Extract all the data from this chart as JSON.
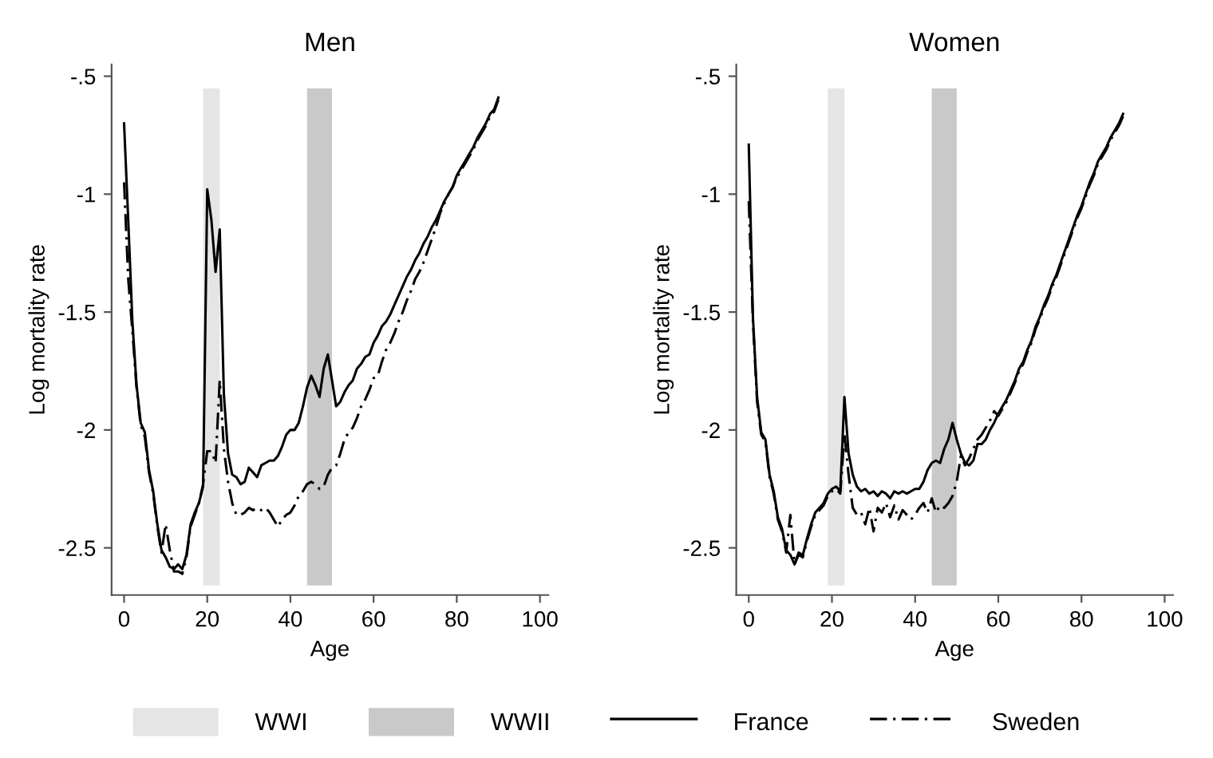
{
  "chart_data": [
    {
      "type": "line",
      "title": "Men",
      "xlabel": "Age",
      "ylabel": "Log mortality rate",
      "x": [
        0,
        1,
        2,
        3,
        4,
        5,
        6,
        7,
        8,
        9,
        10,
        11,
        12,
        13,
        14,
        15,
        16,
        17,
        18,
        19,
        20,
        21,
        22,
        23,
        24,
        25,
        26,
        27,
        28,
        29,
        30,
        31,
        32,
        33,
        34,
        35,
        36,
        37,
        38,
        39,
        40,
        41,
        42,
        43,
        44,
        45,
        46,
        47,
        48,
        49,
        50,
        51,
        52,
        53,
        54,
        55,
        56,
        57,
        58,
        59,
        60,
        61,
        62,
        63,
        64,
        65,
        66,
        67,
        68,
        69,
        70,
        71,
        72,
        73,
        74,
        75,
        76,
        77,
        78,
        79,
        80,
        81,
        82,
        83,
        84,
        85,
        86,
        87,
        88,
        89,
        90
      ],
      "series": [
        {
          "name": "France",
          "color": "#000000",
          "line_style": "solid",
          "values": [
            -0.7,
            -1.11,
            -1.54,
            -1.81,
            -1.97,
            -2.01,
            -2.17,
            -2.26,
            -2.4,
            -2.51,
            -2.54,
            -2.58,
            -2.59,
            -2.57,
            -2.59,
            -2.53,
            -2.4,
            -2.35,
            -2.31,
            -2.24,
            -0.98,
            -1.11,
            -1.33,
            -1.15,
            -1.85,
            -2.1,
            -2.19,
            -2.2,
            -2.23,
            -2.22,
            -2.16,
            -2.18,
            -2.2,
            -2.15,
            -2.14,
            -2.13,
            -2.13,
            -2.11,
            -2.07,
            -2.02,
            -2.0,
            -2.0,
            -1.97,
            -1.9,
            -1.82,
            -1.77,
            -1.81,
            -1.86,
            -1.74,
            -1.68,
            -1.79,
            -1.9,
            -1.88,
            -1.84,
            -1.81,
            -1.79,
            -1.74,
            -1.72,
            -1.69,
            -1.68,
            -1.63,
            -1.6,
            -1.56,
            -1.54,
            -1.51,
            -1.47,
            -1.43,
            -1.39,
            -1.35,
            -1.32,
            -1.28,
            -1.25,
            -1.21,
            -1.18,
            -1.14,
            -1.11,
            -1.07,
            -1.03,
            -1.0,
            -0.97,
            -0.92,
            -0.89,
            -0.86,
            -0.83,
            -0.8,
            -0.76,
            -0.73,
            -0.7,
            -0.66,
            -0.64,
            -0.59
          ]
        },
        {
          "name": "Sweden",
          "color": "#000000",
          "line_style": "dashdot",
          "values": [
            -0.95,
            -1.36,
            -1.58,
            -1.82,
            -1.98,
            -2.03,
            -2.18,
            -2.27,
            -2.41,
            -2.52,
            -2.4,
            -2.51,
            -2.6,
            -2.6,
            -2.61,
            -2.54,
            -2.41,
            -2.36,
            -2.31,
            -2.23,
            -2.09,
            -2.09,
            -2.14,
            -1.79,
            -2.08,
            -2.22,
            -2.31,
            -2.36,
            -2.36,
            -2.35,
            -2.33,
            -2.34,
            -2.33,
            -2.34,
            -2.33,
            -2.35,
            -2.38,
            -2.41,
            -2.38,
            -2.36,
            -2.35,
            -2.32,
            -2.28,
            -2.26,
            -2.23,
            -2.22,
            -2.23,
            -2.25,
            -2.24,
            -2.19,
            -2.16,
            -2.15,
            -2.1,
            -2.04,
            -2.01,
            -1.99,
            -1.95,
            -1.9,
            -1.87,
            -1.83,
            -1.78,
            -1.77,
            -1.71,
            -1.66,
            -1.63,
            -1.59,
            -1.54,
            -1.5,
            -1.45,
            -1.41,
            -1.36,
            -1.33,
            -1.29,
            -1.24,
            -1.19,
            -1.14,
            -1.08,
            -1.04,
            -1.0,
            -0.97,
            -0.93,
            -0.9,
            -0.87,
            -0.84,
            -0.81,
            -0.77,
            -0.74,
            -0.71,
            -0.67,
            -0.65,
            -0.6
          ]
        }
      ],
      "xlim": [
        -3,
        102
      ],
      "xticks": [
        0,
        20,
        40,
        60,
        80,
        100
      ],
      "ylim": [
        -2.7,
        -0.45
      ],
      "yticks": [
        {
          "value": -0.5,
          "label": "-.5"
        },
        -1,
        -1.5,
        -2,
        -2.5
      ],
      "bands": [
        {
          "axis": "x",
          "from": 19,
          "to": 23,
          "label": "WWI",
          "color": "#e5e5e5"
        },
        {
          "axis": "x",
          "from": 44,
          "to": 50,
          "label": "WWII",
          "color": "#c9c9c9"
        }
      ],
      "legend": "bottom"
    },
    {
      "type": "line",
      "title": "Women",
      "xlabel": "Age",
      "ylabel": "Log mortality rate",
      "x": [
        0,
        1,
        2,
        3,
        4,
        5,
        6,
        7,
        8,
        9,
        10,
        11,
        12,
        13,
        14,
        15,
        16,
        17,
        18,
        19,
        20,
        21,
        22,
        23,
        24,
        25,
        26,
        27,
        28,
        29,
        30,
        31,
        32,
        33,
        34,
        35,
        36,
        37,
        38,
        39,
        40,
        41,
        42,
        43,
        44,
        45,
        46,
        47,
        48,
        49,
        50,
        51,
        52,
        53,
        54,
        55,
        56,
        57,
        58,
        59,
        60,
        61,
        62,
        63,
        64,
        65,
        66,
        67,
        68,
        69,
        70,
        71,
        72,
        73,
        74,
        75,
        76,
        77,
        78,
        79,
        80,
        81,
        82,
        83,
        84,
        85,
        86,
        87,
        88,
        89,
        90
      ],
      "series": [
        {
          "name": "France",
          "color": "#000000",
          "line_style": "solid",
          "values": [
            -0.79,
            -1.52,
            -1.86,
            -2.01,
            -2.04,
            -2.19,
            -2.26,
            -2.37,
            -2.42,
            -2.51,
            -2.53,
            -2.57,
            -2.52,
            -2.53,
            -2.46,
            -2.4,
            -2.35,
            -2.33,
            -2.31,
            -2.27,
            -2.25,
            -2.24,
            -2.26,
            -1.86,
            -2.1,
            -2.19,
            -2.24,
            -2.26,
            -2.25,
            -2.27,
            -2.26,
            -2.28,
            -2.26,
            -2.27,
            -2.29,
            -2.26,
            -2.27,
            -2.26,
            -2.27,
            -2.26,
            -2.25,
            -2.25,
            -2.22,
            -2.17,
            -2.14,
            -2.13,
            -2.14,
            -2.08,
            -2.04,
            -1.97,
            -2.04,
            -2.1,
            -2.14,
            -2.15,
            -2.13,
            -2.06,
            -2.06,
            -2.04,
            -2.0,
            -1.97,
            -1.93,
            -1.9,
            -1.87,
            -1.83,
            -1.79,
            -1.74,
            -1.71,
            -1.66,
            -1.62,
            -1.56,
            -1.52,
            -1.47,
            -1.43,
            -1.38,
            -1.34,
            -1.29,
            -1.24,
            -1.19,
            -1.14,
            -1.09,
            -1.05,
            -1.0,
            -0.95,
            -0.91,
            -0.86,
            -0.83,
            -0.8,
            -0.76,
            -0.73,
            -0.7,
            -0.66
          ]
        },
        {
          "name": "Sweden",
          "color": "#000000",
          "line_style": "dashdot",
          "values": [
            -1.03,
            -1.54,
            -1.88,
            -2.02,
            -2.05,
            -2.2,
            -2.27,
            -2.38,
            -2.43,
            -2.52,
            -2.36,
            -2.57,
            -2.53,
            -2.54,
            -2.47,
            -2.41,
            -2.36,
            -2.34,
            -2.32,
            -2.28,
            -2.26,
            -2.25,
            -2.27,
            -2.02,
            -2.19,
            -2.33,
            -2.36,
            -2.35,
            -2.4,
            -2.33,
            -2.43,
            -2.33,
            -2.35,
            -2.31,
            -2.37,
            -2.32,
            -2.38,
            -2.34,
            -2.36,
            -2.38,
            -2.36,
            -2.33,
            -2.31,
            -2.35,
            -2.29,
            -2.35,
            -2.32,
            -2.33,
            -2.31,
            -2.28,
            -2.22,
            -2.11,
            -2.15,
            -2.12,
            -2.08,
            -2.04,
            -2.02,
            -1.99,
            -1.96,
            -1.92,
            -1.94,
            -1.91,
            -1.88,
            -1.84,
            -1.8,
            -1.75,
            -1.72,
            -1.67,
            -1.63,
            -1.57,
            -1.53,
            -1.48,
            -1.44,
            -1.39,
            -1.35,
            -1.3,
            -1.25,
            -1.2,
            -1.15,
            -1.1,
            -1.06,
            -1.01,
            -0.96,
            -0.92,
            -0.87,
            -0.84,
            -0.81,
            -0.77,
            -0.74,
            -0.71,
            -0.67
          ]
        }
      ],
      "xlim": [
        -3,
        102
      ],
      "xticks": [
        0,
        20,
        40,
        60,
        80,
        100
      ],
      "ylim": [
        -2.7,
        -0.45
      ],
      "yticks": [
        {
          "value": -0.5,
          "label": "-.5"
        },
        -1,
        -1.5,
        -2,
        -2.5
      ],
      "bands": [
        {
          "axis": "x",
          "from": 19,
          "to": 23,
          "color": "#e5e5e5"
        },
        {
          "axis": "x",
          "from": 44,
          "to": 50,
          "color": "#c9c9c9"
        }
      ],
      "legend": "bottom"
    }
  ]
}
